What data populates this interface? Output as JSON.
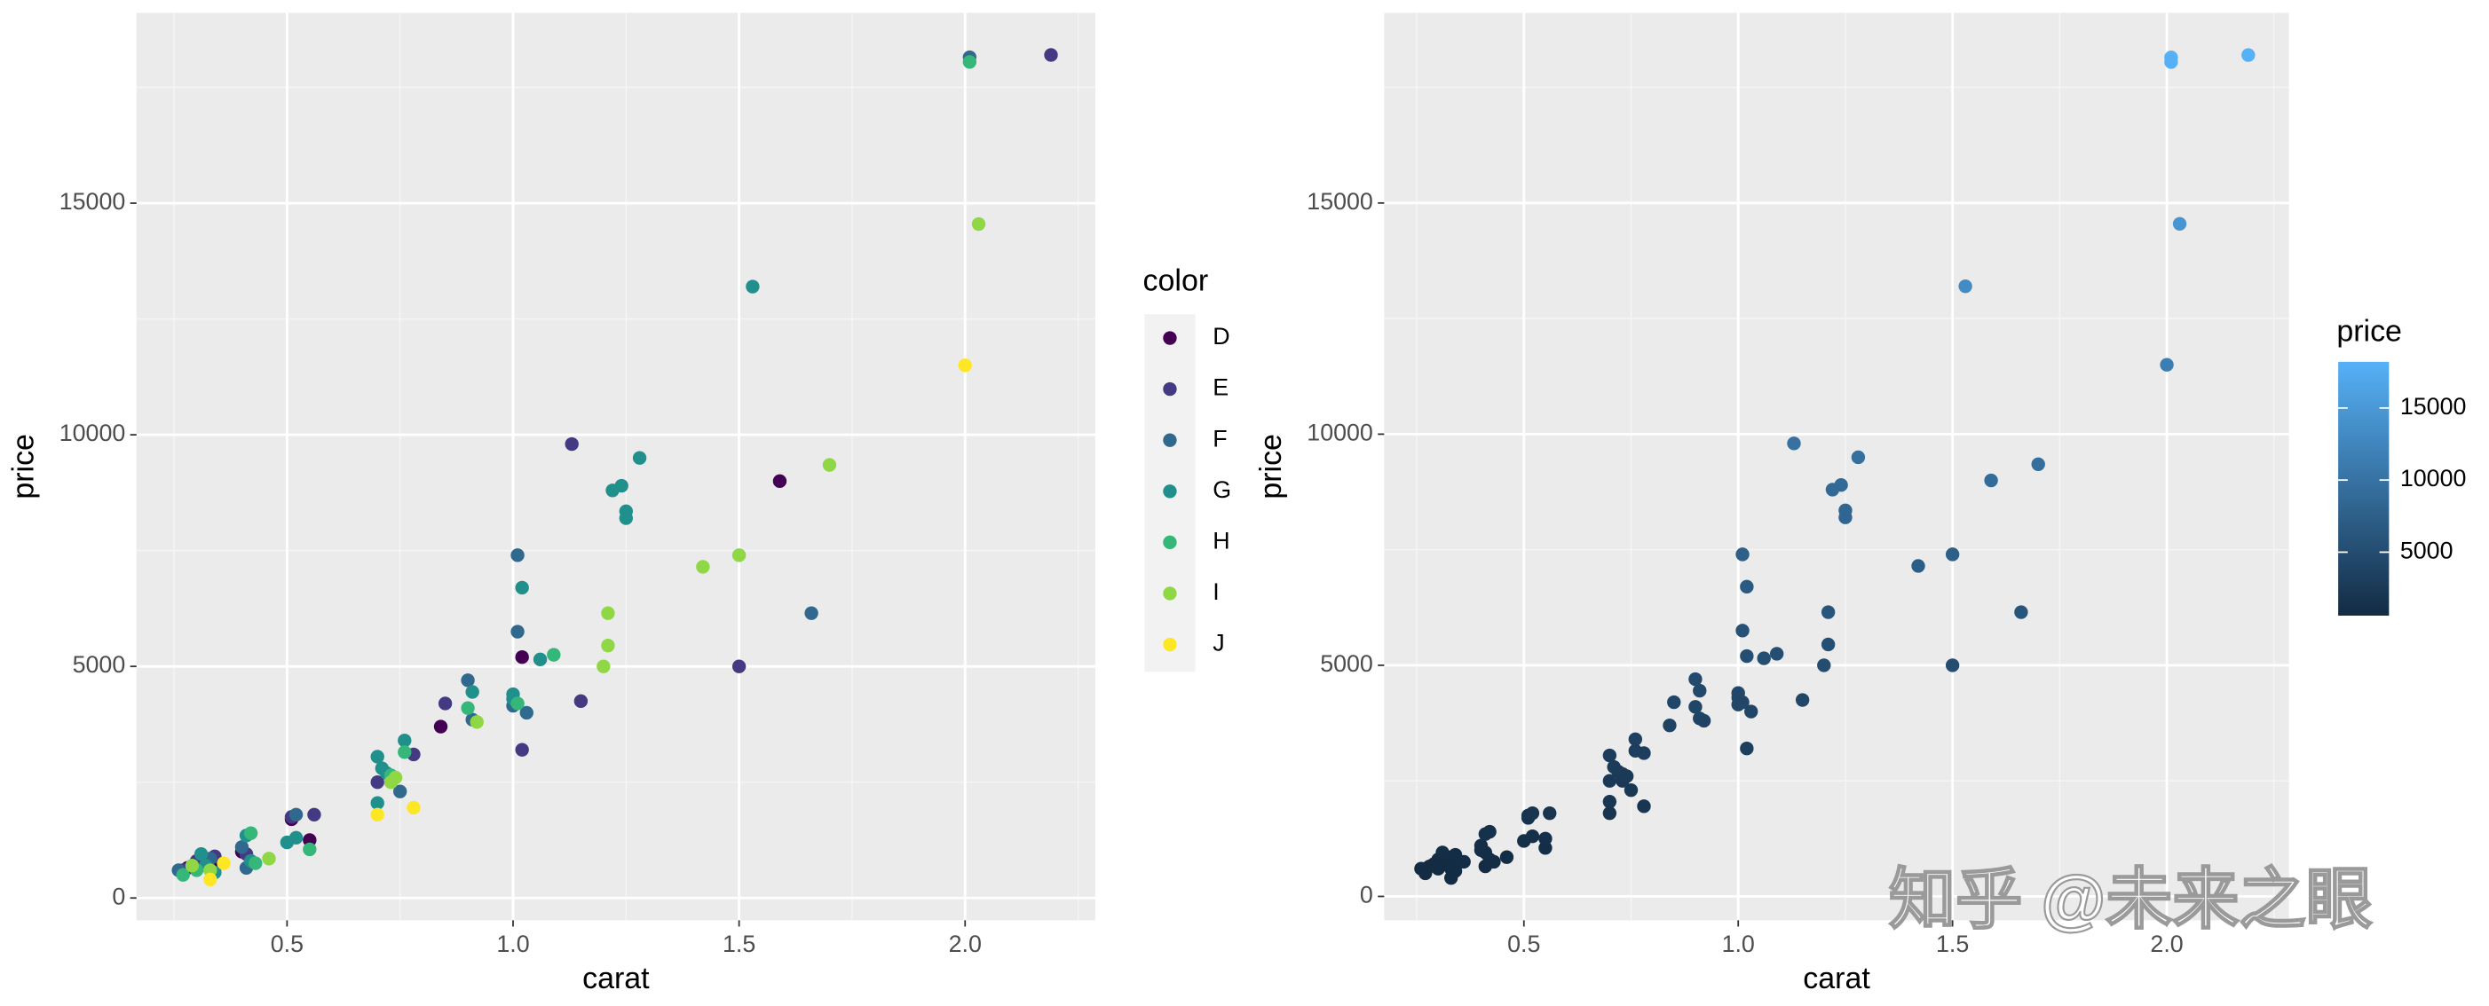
{
  "chart_data": [
    {
      "type": "scatter",
      "x_label": "carat",
      "y_label": "price",
      "legend_title": "color",
      "xlim": [
        0.167,
        2.288
      ],
      "ylim": [
        -480,
        19110
      ],
      "xticks": [
        0.5,
        {
          "value": 1,
          "label": "1.0"
        },
        1.5,
        {
          "value": 2,
          "label": "2.0"
        }
      ],
      "yticks": [
        0,
        5000,
        10000,
        15000
      ],
      "minor_xticks": [
        0.25,
        0.75,
        1.25,
        1.75,
        2.25
      ],
      "minor_yticks": [
        2500,
        7500,
        12500,
        17500
      ],
      "grid": true,
      "legend_position": "right",
      "series": [
        {
          "name": "D",
          "color": "#440154",
          "x": [
            1.59,
            1.02,
            0.84,
            0.51,
            0.55,
            0.4,
            0.35,
            0.28
          ],
          "y": [
            9000,
            5200,
            3700,
            1700,
            1250,
            1000,
            750,
            650
          ]
        },
        {
          "name": "E",
          "color": "#443A83",
          "x": [
            2.19,
            1.13,
            1.5,
            1.15,
            1.02,
            0.85,
            0.78,
            0.7,
            0.51,
            0.56,
            0.41,
            0.34,
            0.3,
            0.27
          ],
          "y": [
            18200,
            9800,
            5000,
            4250,
            3200,
            4200,
            3100,
            2500,
            1750,
            1800,
            950,
            900,
            800,
            600
          ]
        },
        {
          "name": "F",
          "color": "#31688E",
          "x": [
            2.01,
            1.66,
            1.01,
            1.01,
            1.03,
            1.0,
            0.9,
            0.91,
            0.75,
            0.52,
            0.4,
            0.41,
            0.33,
            0.26
          ],
          "y": [
            18150,
            6150,
            7400,
            5750,
            4000,
            4150,
            4700,
            3850,
            2300,
            1800,
            1100,
            650,
            850,
            600
          ]
        },
        {
          "name": "G",
          "color": "#21908C",
          "x": [
            1.53,
            1.28,
            1.24,
            1.22,
            1.25,
            1.25,
            1.02,
            1.06,
            1.0,
            1.0,
            0.91,
            0.76,
            0.7,
            0.71,
            0.72,
            0.7,
            0.52,
            0.5,
            0.41,
            0.42,
            0.32,
            0.31,
            0.34
          ],
          "y": [
            13200,
            9500,
            8900,
            8800,
            8350,
            8200,
            6700,
            5150,
            4300,
            4400,
            4450,
            3400,
            3050,
            2800,
            2700,
            2050,
            1300,
            1200,
            1350,
            800,
            700,
            950,
            550
          ]
        },
        {
          "name": "H",
          "color": "#35B779",
          "x": [
            2.01,
            1.09,
            1.01,
            0.9,
            0.76,
            0.73,
            0.55,
            0.42,
            0.43,
            0.3,
            0.27
          ],
          "y": [
            18050,
            5250,
            4200,
            4100,
            3150,
            2650,
            1050,
            1400,
            750,
            600,
            500
          ]
        },
        {
          "name": "I",
          "color": "#8FD744",
          "x": [
            2.03,
            1.7,
            1.5,
            1.42,
            1.21,
            1.21,
            1.2,
            0.92,
            0.73,
            0.74,
            0.46,
            0.29,
            0.33
          ],
          "y": [
            14550,
            9350,
            7400,
            7150,
            6150,
            5450,
            5000,
            3800,
            2500,
            2600,
            850,
            700,
            600
          ]
        },
        {
          "name": "J",
          "color": "#FDE725",
          "x": [
            2.0,
            0.7,
            0.78,
            0.33,
            0.36
          ],
          "y": [
            11500,
            1800,
            1950,
            400,
            750
          ]
        }
      ]
    },
    {
      "type": "scatter-gradient",
      "x_label": "carat",
      "y_label": "price",
      "legend_title": "price",
      "xlim": [
        0.174,
        2.285
      ],
      "ylim": [
        -515,
        19115
      ],
      "xticks": [
        0.5,
        {
          "value": 1,
          "label": "1.0"
        },
        1.5,
        {
          "value": 2,
          "label": "2.0"
        }
      ],
      "yticks": [
        0,
        5000,
        10000,
        15000
      ],
      "minor_xticks": [
        0.25,
        0.75,
        1.25,
        1.75,
        2.25
      ],
      "minor_yticks": [
        2500,
        7500,
        12500,
        17500
      ],
      "grid": true,
      "legend_position": "right",
      "color_scale": [
        "#132B43",
        "#56B1F7"
      ],
      "clim": [
        600,
        18200
      ],
      "colorbar_ticks": [
        5000,
        10000,
        15000
      ],
      "x": [
        1.59,
        1.02,
        0.84,
        0.51,
        0.55,
        0.4,
        0.35,
        0.28,
        2.19,
        1.13,
        1.5,
        1.15,
        1.02,
        0.85,
        0.78,
        0.7,
        0.51,
        0.56,
        0.41,
        0.34,
        0.3,
        0.27,
        2.01,
        1.66,
        1.01,
        1.01,
        1.03,
        1.0,
        0.9,
        0.91,
        0.75,
        0.52,
        0.4,
        0.41,
        0.33,
        0.26,
        1.53,
        1.28,
        1.24,
        1.22,
        1.25,
        1.25,
        1.02,
        1.06,
        1.0,
        1.0,
        0.91,
        0.76,
        0.7,
        0.71,
        0.72,
        0.7,
        0.52,
        0.5,
        0.41,
        0.42,
        0.32,
        0.31,
        0.34,
        2.01,
        1.09,
        1.01,
        0.9,
        0.76,
        0.73,
        0.55,
        0.42,
        0.43,
        0.3,
        0.27,
        2.03,
        1.7,
        1.5,
        1.42,
        1.21,
        1.21,
        1.2,
        0.92,
        0.73,
        0.74,
        0.46,
        0.29,
        0.33,
        2.0,
        0.7,
        0.78,
        0.33,
        0.36
      ],
      "y": [
        9000,
        5200,
        3700,
        1700,
        1250,
        1000,
        750,
        650,
        18200,
        9800,
        5000,
        4250,
        3200,
        4200,
        3100,
        2500,
        1750,
        1800,
        950,
        900,
        800,
        600,
        18150,
        6150,
        7400,
        5750,
        4000,
        4150,
        4700,
        3850,
        2300,
        1800,
        1100,
        650,
        850,
        600,
        13200,
        9500,
        8900,
        8800,
        8350,
        8200,
        6700,
        5150,
        4300,
        4400,
        4450,
        3400,
        3050,
        2800,
        2700,
        2050,
        1300,
        1200,
        1350,
        800,
        700,
        950,
        550,
        18050,
        5250,
        4200,
        4100,
        3150,
        2650,
        1050,
        1400,
        750,
        600,
        500,
        14550,
        9350,
        7400,
        7150,
        6150,
        5450,
        5000,
        3800,
        2500,
        2600,
        850,
        700,
        600,
        11500,
        1800,
        1950,
        400,
        750
      ]
    }
  ],
  "watermark": "知乎 @未来之眼"
}
